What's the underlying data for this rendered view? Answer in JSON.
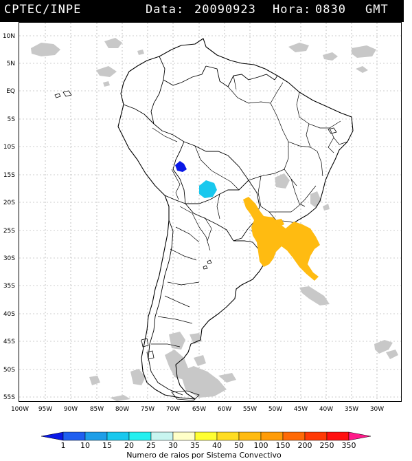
{
  "header": {
    "source": "CPTEC/INPE",
    "date_label": "Data:",
    "date_value": "20090923",
    "hour_label": "Hora:",
    "hour_value": "0830",
    "tz": "GMT"
  },
  "lat_labels": [
    "10N",
    "5N",
    "EQ",
    "5S",
    "10S",
    "15S",
    "20S",
    "25S",
    "30S",
    "35S",
    "40S",
    "45S",
    "50S",
    "55S"
  ],
  "lon_labels": [
    "100W",
    "95W",
    "90W",
    "85W",
    "80W",
    "75W",
    "70W",
    "65W",
    "60W",
    "55W",
    "50W",
    "45W",
    "40W",
    "35W",
    "30W"
  ],
  "legend": {
    "caption": "Numero de raios por Sistema Convectivo",
    "ticks": [
      "1",
      "10",
      "15",
      "20",
      "25",
      "30",
      "35",
      "40",
      "50",
      "100",
      "150",
      "200",
      "250",
      "350"
    ],
    "colors": [
      "#0a18e6",
      "#1f5ff0",
      "#1e9ee8",
      "#19c8ee",
      "#25f0f0",
      "#c8f5f0",
      "#ffffc8",
      "#ffff33",
      "#ffdd22",
      "#ffbb11",
      "#ff9c08",
      "#ff6a06",
      "#ff3a06",
      "#ff1010",
      "#ff1a8a"
    ]
  },
  "colors": {
    "cloud": "#c8c8c8",
    "storm_orange": "#ffbb11",
    "storm_cyan": "#19c8ee",
    "storm_blue": "#0a18e6"
  }
}
